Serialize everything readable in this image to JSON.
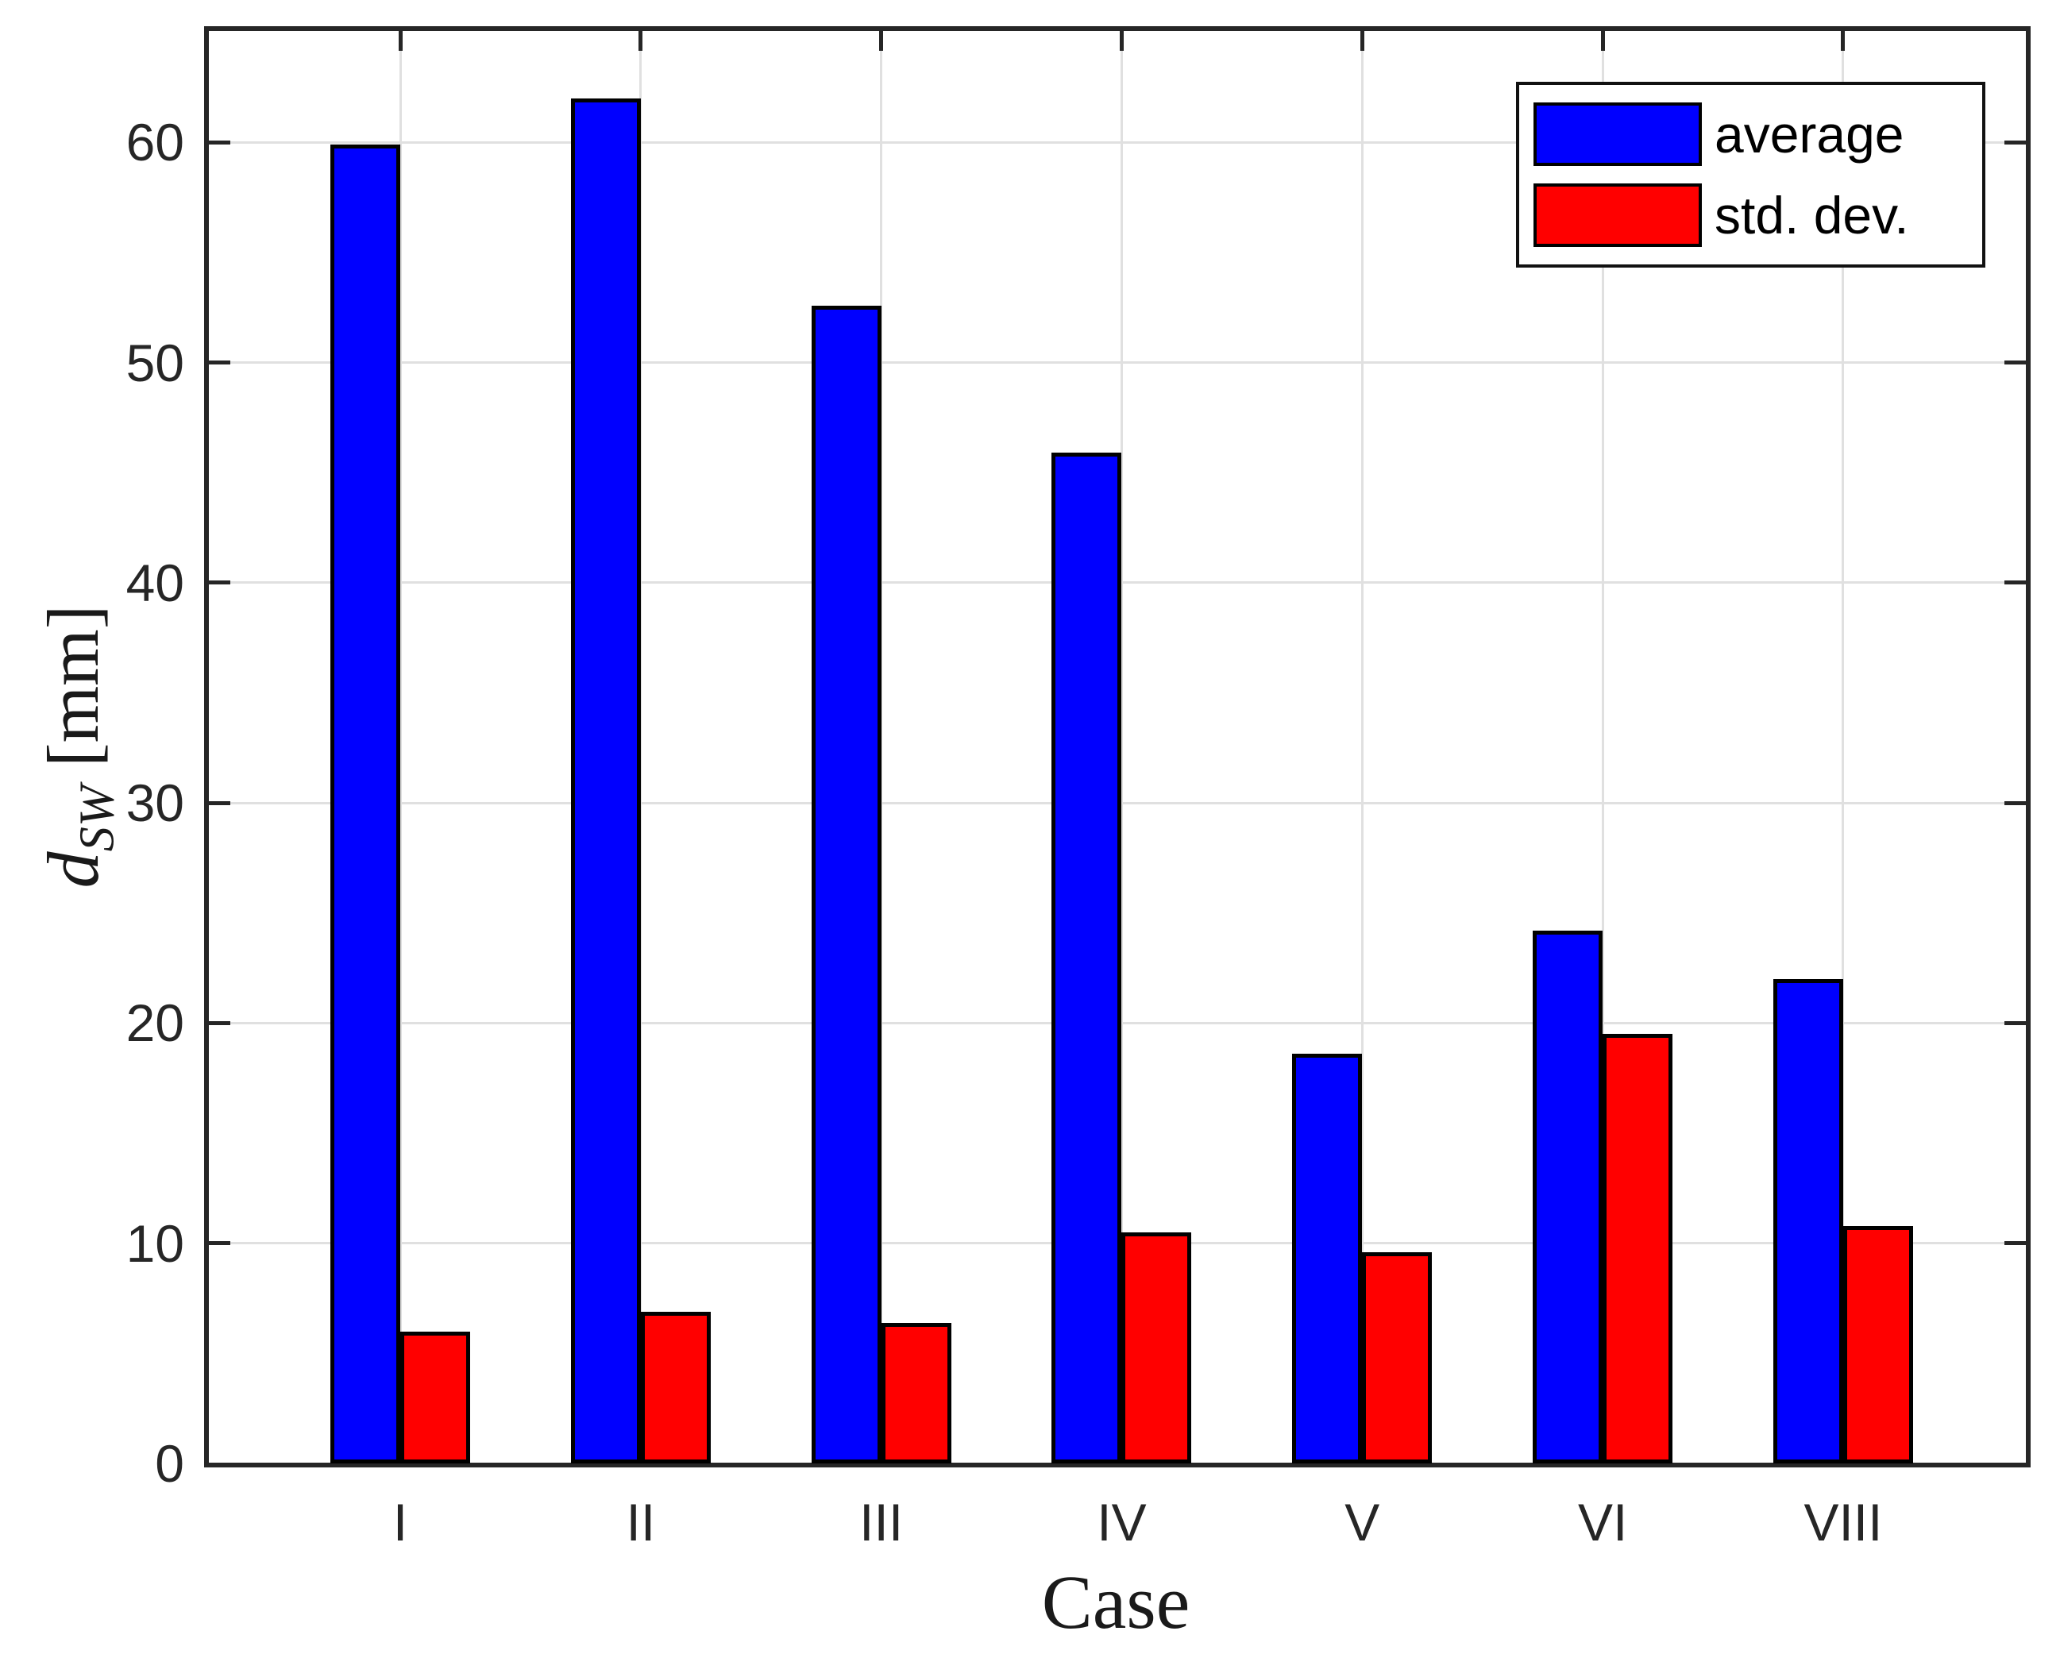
{
  "chart_data": {
    "type": "bar",
    "title": "",
    "categories": [
      "I",
      "II",
      "III",
      "IV",
      "V",
      "VI",
      "VIII"
    ],
    "series": [
      {
        "name": "average",
        "color": "#0000ff",
        "values": [
          59.9,
          62.0,
          52.6,
          45.9,
          18.6,
          24.2,
          22.0
        ]
      },
      {
        "name": "std. dev.",
        "color": "#ff0000",
        "values": [
          6.0,
          6.9,
          6.4,
          10.5,
          9.6,
          19.5,
          10.8
        ]
      }
    ],
    "xlabel": "Case",
    "ylabel": "d_SW [mm]",
    "ylabel_parts": {
      "symbol": "d",
      "subscript": "SW",
      "unit": "[mm]"
    },
    "yticks": [
      0,
      10,
      20,
      30,
      40,
      50,
      60
    ],
    "ylim": [
      0,
      65.1
    ],
    "grid": "on",
    "legend_position": "northeast",
    "colors": {
      "bar_edge": "#000000",
      "axis": "#262626",
      "grid": "#e0e0e0",
      "background": "#ffffff",
      "legend_border": "#111111"
    }
  }
}
